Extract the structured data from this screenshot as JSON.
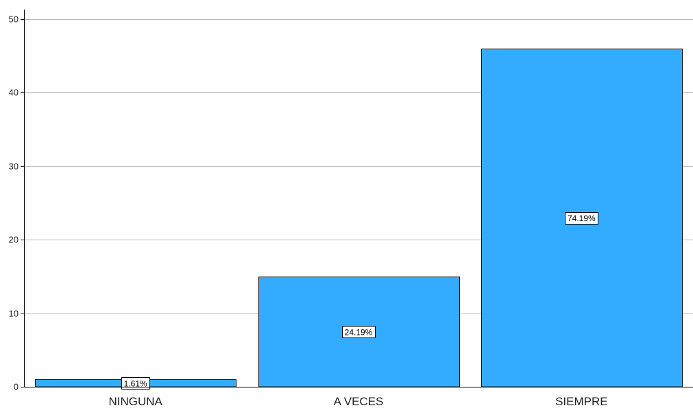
{
  "chart_data": {
    "type": "bar",
    "title": "",
    "xlabel": "",
    "ylabel": "",
    "categories": [
      "NINGUNA",
      "A VECES",
      "SIEMPRE"
    ],
    "values": [
      1,
      15,
      46
    ],
    "data_labels": [
      "1.61%",
      "24.19%",
      "74.19%"
    ],
    "ylim": [
      0,
      50
    ],
    "yticks": [
      0,
      10,
      20,
      30,
      40,
      50
    ],
    "ytick_labels": [
      "0",
      "10",
      "20",
      "30",
      "40",
      "50"
    ],
    "grid": "horizontal",
    "legend": "none",
    "colors": {
      "bar_fill": "#33abff",
      "bar_stroke": "#111111",
      "grid": "#b8b8b8",
      "axis": "#000000"
    }
  }
}
